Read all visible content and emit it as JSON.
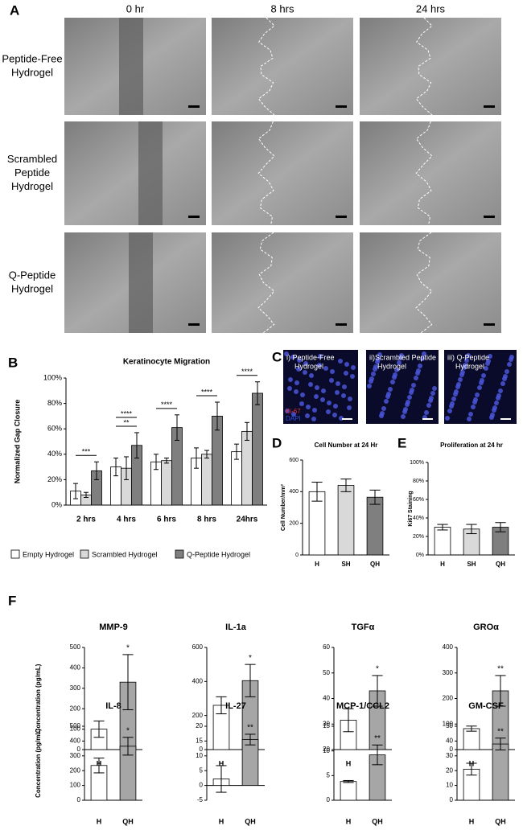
{
  "panel_labels": [
    "A",
    "B",
    "C",
    "D",
    "E",
    "F"
  ],
  "panel_a": {
    "columns": [
      "0 hr",
      "8 hrs",
      "24 hrs"
    ],
    "rows": [
      [
        "Peptide-Free",
        "Hydrogel"
      ],
      [
        "Scrambled",
        "Peptide",
        "Hydrogel"
      ],
      [
        "Q-Peptide",
        "Hydrogel"
      ]
    ]
  },
  "panel_c": {
    "images": [
      [
        "i) Peptide-Free",
        "Hydrogel"
      ],
      [
        "ii)Scrambled Peptide",
        "Hydrogel"
      ],
      [
        "iii) Q-Peptide",
        "Hydrogel"
      ]
    ],
    "channels": [
      {
        "name": "Ki-67",
        "color": "#e03030"
      },
      {
        "name": "DAPI",
        "color": "#3050e0"
      }
    ]
  },
  "chart_data": [
    {
      "type": "bar",
      "title": "Keratinocyte Migration",
      "ylabel": "Normalized Gap Closure",
      "categories": [
        "2 hrs",
        "4 hrs",
        "6 hrs",
        "8 hrs",
        "24hrs"
      ],
      "series": [
        {
          "name": "Empty Hydrogel",
          "color": "#ffffff",
          "values": [
            11,
            30,
            34,
            37,
            42
          ],
          "errors": [
            6,
            7,
            6,
            8,
            6
          ]
        },
        {
          "name": "Scrambled Hydrogel",
          "color": "#d9d9d9",
          "values": [
            8,
            29,
            35,
            40,
            58
          ],
          "errors": [
            2,
            9,
            2,
            3,
            7
          ]
        },
        {
          "name": "Q-Peptide Hydrogel",
          "color": "#7f7f7f",
          "values": [
            27,
            47,
            61,
            70,
            88
          ],
          "errors": [
            7,
            10,
            10,
            11,
            9
          ]
        }
      ],
      "annotations": [
        [
          "***"
        ],
        [
          "**",
          "****"
        ],
        [
          "****"
        ],
        [
          "****"
        ],
        [
          "****"
        ]
      ],
      "ylim": [
        0,
        100
      ],
      "yticks": [
        {
          "value": 0,
          "label": "0%"
        },
        {
          "value": 20,
          "label": "20%"
        },
        {
          "value": 40,
          "label": "40%"
        },
        {
          "value": 60,
          "label": "60%"
        },
        {
          "value": 80,
          "label": "80%"
        },
        {
          "value": 100,
          "label": "100%"
        }
      ]
    },
    {
      "type": "bar",
      "title": "Cell Number at 24 Hr",
      "ylabel": "Cell Number/mm²",
      "categories": [
        "H",
        "SH",
        "QH"
      ],
      "values": [
        400,
        440,
        365
      ],
      "errors": [
        60,
        40,
        45
      ],
      "colors": [
        "#ffffff",
        "#d9d9d9",
        "#7f7f7f"
      ],
      "ylim": [
        0,
        600
      ],
      "yticks": [
        0,
        200,
        400,
        600
      ]
    },
    {
      "type": "bar",
      "title": "Proliferation at 24 hr",
      "ylabel": "Ki67 Staining",
      "categories": [
        "H",
        "SH",
        "QH"
      ],
      "values": [
        30,
        28,
        30
      ],
      "errors": [
        3,
        5,
        5
      ],
      "colors": [
        "#ffffff",
        "#d9d9d9",
        "#7f7f7f"
      ],
      "ylim": [
        0,
        100
      ],
      "yticks": [
        {
          "value": 0,
          "label": "0%"
        },
        {
          "value": 20,
          "label": "20%"
        },
        {
          "value": 40,
          "label": "40%"
        },
        {
          "value": 60,
          "label": "60%"
        },
        {
          "value": 80,
          "label": "80%"
        },
        {
          "value": 100,
          "label": "100%"
        }
      ]
    },
    {
      "type": "bar",
      "title": "MMP-9",
      "ylabel": "Concentration (pg/mL)",
      "categories": [
        "H",
        "QH"
      ],
      "values": [
        100,
        330
      ],
      "errors": [
        40,
        135
      ],
      "colors": [
        "#ffffff",
        "#a6a6a6"
      ],
      "annotations": [
        null,
        "*"
      ],
      "ylim": [
        0,
        500
      ],
      "yticks": [
        0,
        100,
        200,
        300,
        400,
        500
      ]
    },
    {
      "type": "bar",
      "title": "IL-1a",
      "categories": [
        "H",
        "QH"
      ],
      "values": [
        260,
        405
      ],
      "errors": [
        50,
        95
      ],
      "colors": [
        "#ffffff",
        "#a6a6a6"
      ],
      "annotations": [
        null,
        "*"
      ],
      "ylim": [
        0,
        600
      ],
      "yticks": [
        0,
        200,
        400,
        600
      ]
    },
    {
      "type": "bar",
      "title": "TGFα",
      "categories": [
        "H",
        "QH"
      ],
      "values": [
        31.5,
        43
      ],
      "errors": [
        4.5,
        6
      ],
      "colors": [
        "#ffffff",
        "#a6a6a6"
      ],
      "annotations": [
        null,
        "*"
      ],
      "ylim": [
        20,
        60
      ],
      "yticks": [
        20,
        30,
        40,
        50,
        60
      ]
    },
    {
      "type": "bar",
      "title": "GROα",
      "categories": [
        "H",
        "QH"
      ],
      "values": [
        82,
        230
      ],
      "errors": [
        10,
        60
      ],
      "colors": [
        "#ffffff",
        "#a6a6a6"
      ],
      "annotations": [
        null,
        "**"
      ],
      "ylim": [
        0,
        400
      ],
      "yticks": [
        0,
        100,
        200,
        300,
        400
      ]
    },
    {
      "type": "bar",
      "title": "IL-8",
      "ylabel": "Concentration (pg/mL)",
      "categories": [
        "H",
        "QH"
      ],
      "values": [
        235,
        365
      ],
      "errors": [
        50,
        60
      ],
      "colors": [
        "#ffffff",
        "#a6a6a6"
      ],
      "annotations": [
        null,
        "*"
      ],
      "ylim": [
        0,
        500
      ],
      "yticks": [
        0,
        100,
        200,
        300,
        400,
        500
      ]
    },
    {
      "type": "bar",
      "title": "IL-27",
      "categories": [
        "H",
        "QH"
      ],
      "values": [
        2.2,
        15.5
      ],
      "errors": [
        4.5,
        1.8
      ],
      "colors": [
        "#ffffff",
        "#a6a6a6"
      ],
      "annotations": [
        null,
        "**"
      ],
      "ylim": [
        -5,
        20
      ],
      "yticks": [
        -5,
        0,
        5,
        10,
        15,
        20
      ]
    },
    {
      "type": "bar",
      "title": "MCP-1/CCL2",
      "categories": [
        "H",
        "QH"
      ],
      "values": [
        3.8,
        9.2
      ],
      "errors": [
        0.2,
        2
      ],
      "colors": [
        "#ffffff",
        "#a6a6a6"
      ],
      "annotations": [
        null,
        "**"
      ],
      "ylim": [
        0,
        15
      ],
      "yticks": [
        0,
        5,
        10,
        15
      ]
    },
    {
      "type": "bar",
      "title": "GM-CSF",
      "categories": [
        "H",
        "QH"
      ],
      "values": [
        21,
        38
      ],
      "errors": [
        4,
        4
      ],
      "colors": [
        "#ffffff",
        "#a6a6a6"
      ],
      "annotations": [
        null,
        "**"
      ],
      "ylim": [
        0,
        50
      ],
      "yticks": [
        0,
        10,
        20,
        30,
        40,
        50
      ]
    }
  ]
}
